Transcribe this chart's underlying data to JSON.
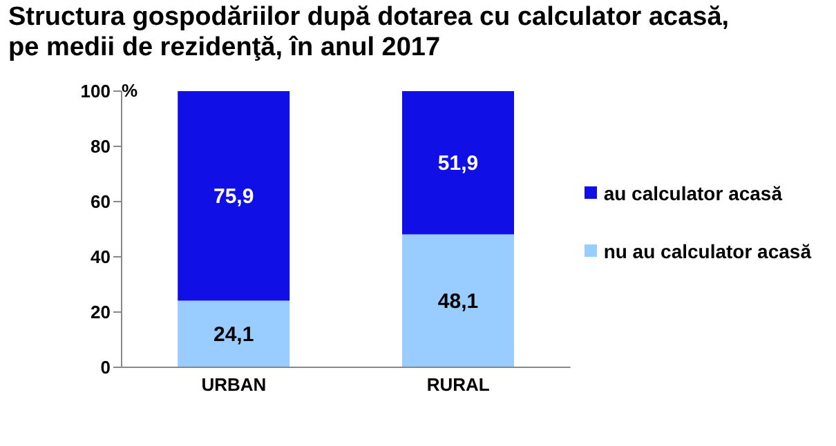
{
  "chart_data": {
    "type": "bar",
    "title": "Structura gospodăriilor după dotarea cu calculator acasă,\npe medii de rezidenţă, în anul 2017",
    "ylabel": "%",
    "categories": [
      "URBAN",
      "RURAL"
    ],
    "stacked": true,
    "series": [
      {
        "name": "nu au calculator acasă",
        "color": "#99ccff",
        "values": [
          24.1,
          48.1
        ],
        "value_labels": [
          "24,1",
          "48,1"
        ]
      },
      {
        "name": "au calculator acasă",
        "color": "#0f0fe6",
        "values": [
          75.9,
          51.9
        ],
        "value_labels": [
          "75,9",
          "51,9"
        ]
      }
    ],
    "ylim": [
      0,
      100
    ],
    "yticks": [
      0,
      20,
      40,
      60,
      80,
      100
    ],
    "grid": false,
    "legend": "right"
  }
}
